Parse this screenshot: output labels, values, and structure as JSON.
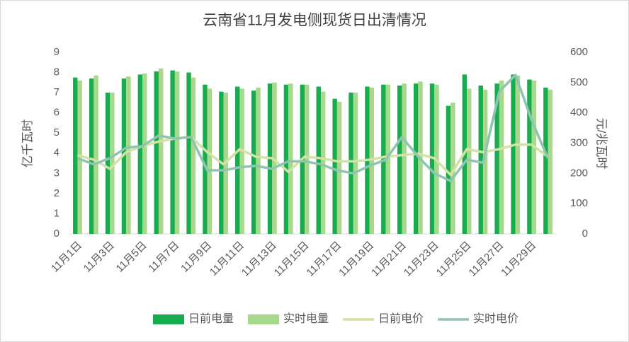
{
  "chart_data": {
    "type": "combo",
    "title": "云南省11月发电侧现货日出清情况",
    "categories": [
      "11月1日",
      null,
      "11月3日",
      null,
      "11月5日",
      null,
      "11月7日",
      null,
      "11月9日",
      null,
      "11月11日",
      null,
      "11月13日",
      null,
      "11月15日",
      null,
      "11月17日",
      null,
      "11月19日",
      null,
      "11月21日",
      null,
      "11月23日",
      null,
      "11月25日",
      null,
      "11月27日",
      null,
      "11月29日",
      null
    ],
    "y_label": "亿千瓦时",
    "y2_label": "元/兆瓦时",
    "ylim": [
      0,
      9
    ],
    "yticks": [
      0,
      1,
      2,
      3,
      4,
      5,
      6,
      7,
      8,
      9
    ],
    "y2lim": [
      0,
      600
    ],
    "y2ticks": [
      0,
      100,
      200,
      300,
      400,
      500,
      600
    ],
    "legend": "bottom",
    "series": [
      {
        "name": "日前电量",
        "type": "bar",
        "color": "#17ad4e",
        "values": [
          7.75,
          7.7,
          7.0,
          7.7,
          7.9,
          8.05,
          8.1,
          8.0,
          7.4,
          7.05,
          7.3,
          7.1,
          7.45,
          7.4,
          7.4,
          7.3,
          6.7,
          7.0,
          7.3,
          7.4,
          7.35,
          7.45,
          7.45,
          6.35,
          7.9,
          7.35,
          7.45,
          7.9,
          7.65,
          7.25
        ]
      },
      {
        "name": "实时电量",
        "type": "bar",
        "color": "#a8d88c",
        "values": [
          7.6,
          7.85,
          7.0,
          7.8,
          7.95,
          8.2,
          8.05,
          7.75,
          7.2,
          7.0,
          7.2,
          7.25,
          7.5,
          7.45,
          7.4,
          7.05,
          6.55,
          7.0,
          7.25,
          7.4,
          7.45,
          7.55,
          7.4,
          6.5,
          7.2,
          7.15,
          7.6,
          7.85,
          7.6,
          7.15
        ]
      },
      {
        "name": "日前电价",
        "type": "line",
        "axis": "y2",
        "color": "#d3e3a6",
        "values": [
          260,
          245,
          215,
          270,
          290,
          305,
          315,
          320,
          270,
          230,
          280,
          255,
          250,
          205,
          255,
          250,
          240,
          240,
          245,
          255,
          260,
          265,
          250,
          195,
          280,
          270,
          280,
          295,
          295,
          255
        ]
      },
      {
        "name": "实时电价",
        "type": "line",
        "axis": "y2",
        "color": "#8fc4b1",
        "values": [
          250,
          230,
          250,
          285,
          290,
          325,
          315,
          320,
          210,
          210,
          220,
          225,
          215,
          240,
          240,
          230,
          210,
          200,
          225,
          245,
          320,
          255,
          200,
          175,
          245,
          235,
          470,
          525,
          375,
          250
        ]
      }
    ]
  }
}
